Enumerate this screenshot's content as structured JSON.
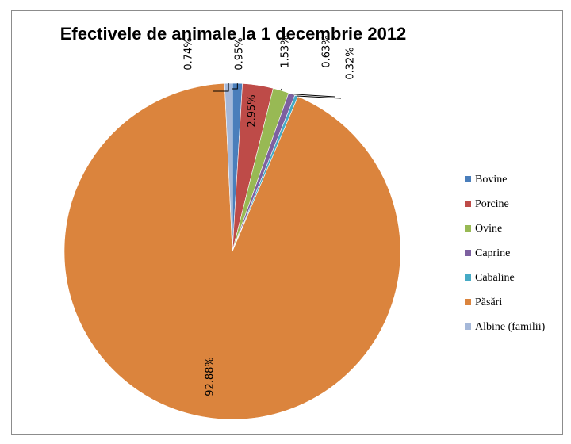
{
  "chart_data": {
    "type": "pie",
    "title": "Efectivele de animale la 1 decembrie 2012",
    "legend_position": "right",
    "slices": [
      {
        "name": "Bovine",
        "value": 0.95,
        "label": "0.95%",
        "color": "#4a7ebb"
      },
      {
        "name": "Porcine",
        "value": 2.95,
        "label": "2.95%",
        "color": "#be4b48"
      },
      {
        "name": "Ovine",
        "value": 1.53,
        "label": "1.53%",
        "color": "#98b954"
      },
      {
        "name": "Caprine",
        "value": 0.63,
        "label": "0.63%",
        "color": "#7d60a0"
      },
      {
        "name": "Cabaline",
        "value": 0.32,
        "label": "0.32%",
        "color": "#46aac5"
      },
      {
        "name": "Păsări",
        "value": 92.88,
        "label": "92.88%",
        "color": "#db843d"
      },
      {
        "name": "Albine (familii)",
        "value": 0.74,
        "label": "0.74%",
        "color": "#a5b8d9"
      }
    ]
  }
}
